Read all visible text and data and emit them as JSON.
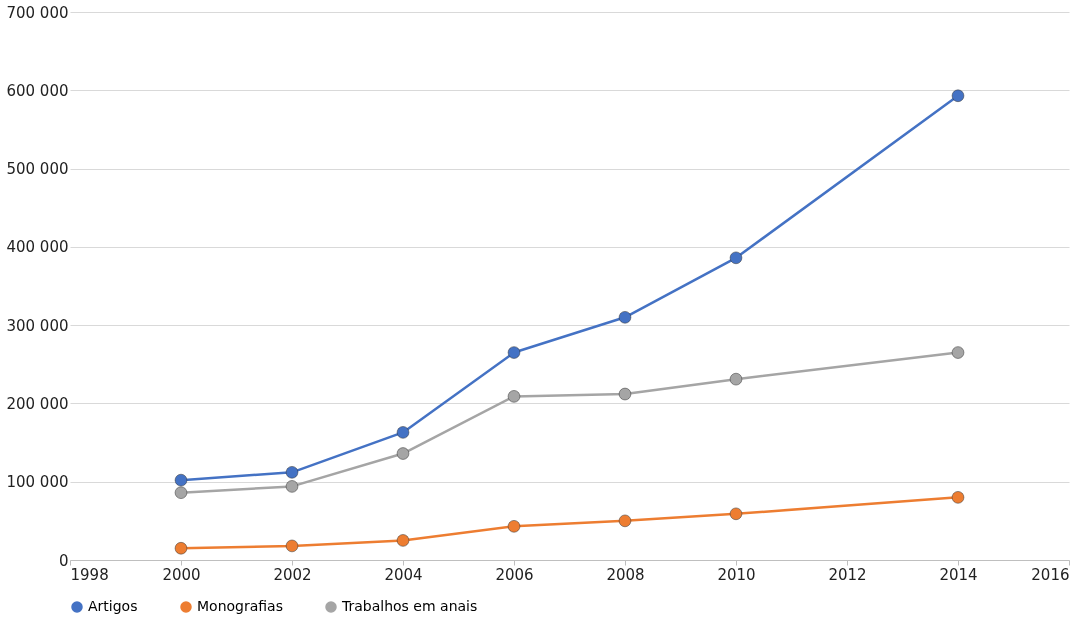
{
  "chart_data": {
    "type": "line",
    "x": [
      2000,
      2002,
      2004,
      2006,
      2008,
      2010,
      2014
    ],
    "series": [
      {
        "name": "Artigos",
        "color": "#4472c4",
        "values": [
          102000,
          112000,
          163000,
          265000,
          310000,
          386000,
          593000
        ]
      },
      {
        "name": "Monografias",
        "color": "#ed7d31",
        "values": [
          15000,
          18000,
          25000,
          43000,
          50000,
          59000,
          80000
        ]
      },
      {
        "name": "Trabalhos em anais",
        "color": "#a5a5a5",
        "values": [
          86000,
          94000,
          136000,
          209000,
          212000,
          231000,
          265000
        ]
      }
    ],
    "xlim": [
      1998,
      2016
    ],
    "xticks": [
      1998,
      2000,
      2002,
      2004,
      2006,
      2008,
      2010,
      2012,
      2014,
      2016
    ],
    "ylim": [
      0,
      700000
    ],
    "yticks": [
      0,
      {
        "value": 100000,
        "label": "100 000"
      },
      {
        "value": 200000,
        "label": "200 000"
      },
      {
        "value": 300000,
        "label": "300 000"
      },
      {
        "value": 400000,
        "label": "400 000"
      },
      {
        "value": 500000,
        "label": "500 000"
      },
      {
        "value": 600000,
        "label": "600 000"
      },
      {
        "value": 700000,
        "label": "700 000"
      }
    ],
    "grid": "y",
    "legend": "bottom",
    "marker": "circle",
    "line_style": "solid"
  }
}
